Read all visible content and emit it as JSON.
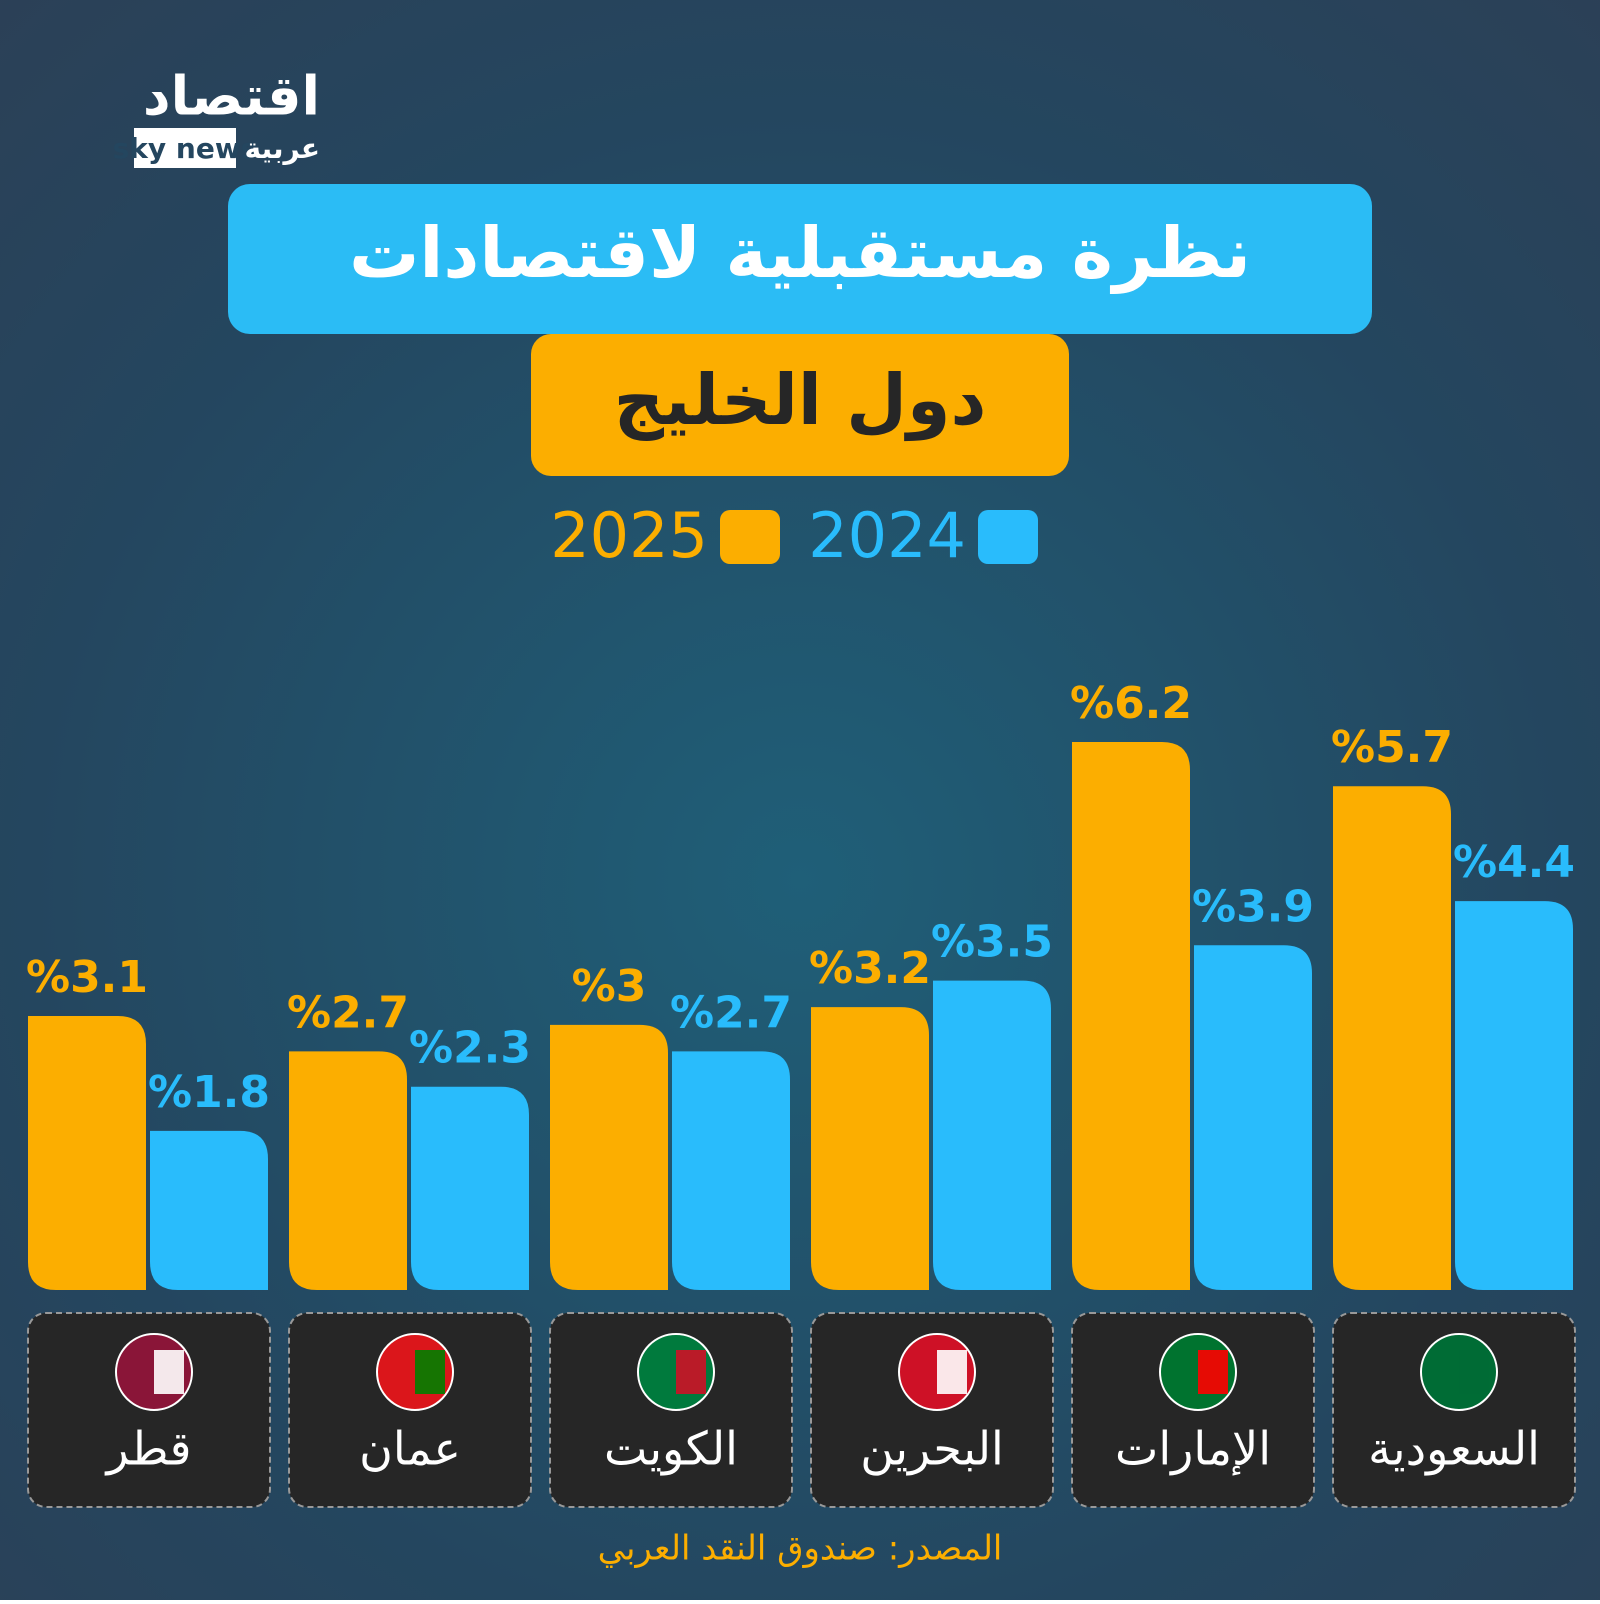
{
  "logo": {
    "brand": "اقتصاد",
    "network": "sky news",
    "suffix": "عربية"
  },
  "chart_data": {
    "type": "bar",
    "title": "نظرة مستقبلية لاقتصادات",
    "subtitle": "دول الخليج",
    "categories": [
      "قطر",
      "عمان",
      "الكويت",
      "البحرين",
      "الإمارات",
      "السعودية"
    ],
    "series": [
      {
        "name": "2025",
        "color": "#fcae00",
        "values": [
          3.1,
          2.7,
          3,
          3.2,
          6.2,
          5.7
        ],
        "value_labels": [
          "%3.1",
          "%2.7",
          "%3",
          "%3.2",
          "%6.2",
          "%5.7"
        ]
      },
      {
        "name": "2024",
        "color": "#29bcfc",
        "values": [
          1.8,
          2.3,
          2.7,
          3.5,
          3.9,
          4.4
        ],
        "value_labels": [
          "%1.8",
          "%2.3",
          "%2.7",
          "%3.5",
          "%3.9",
          "%4.4"
        ]
      }
    ],
    "source": "المصدر: صندوق النقد العربي"
  }
}
